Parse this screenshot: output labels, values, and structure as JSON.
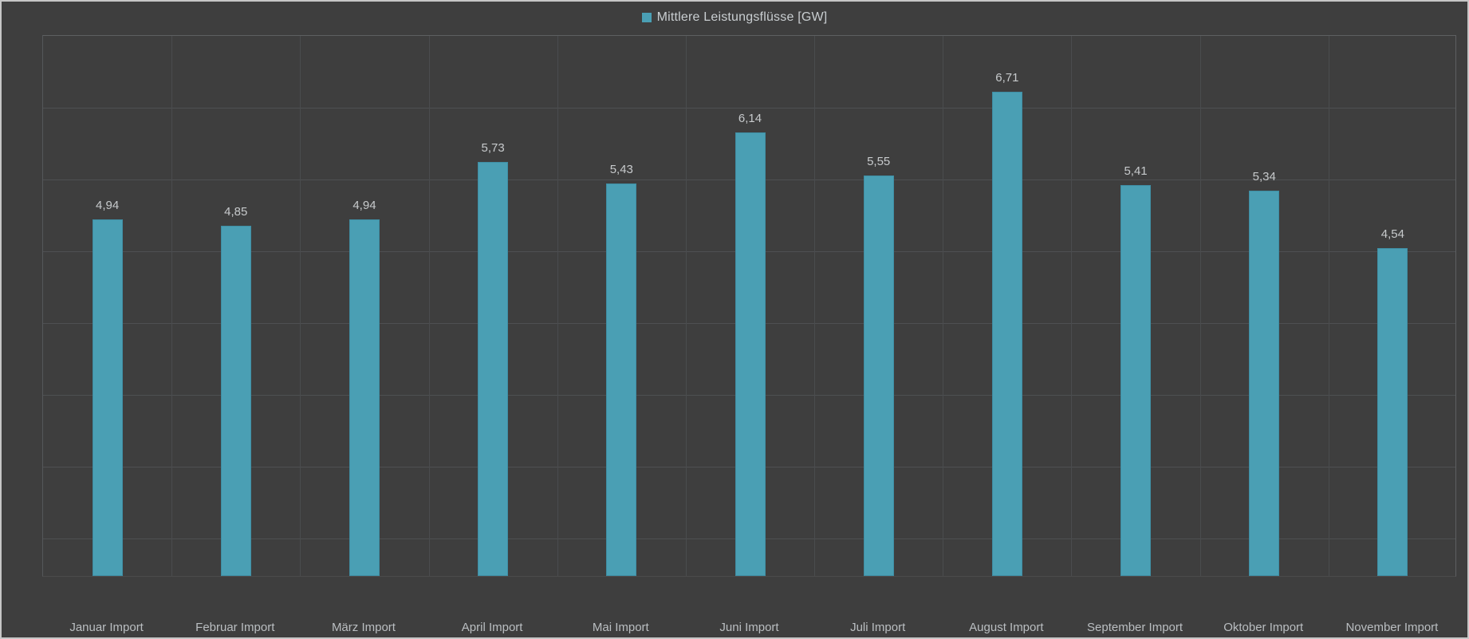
{
  "window": {
    "background_color": "#3e3e3e",
    "border_color": "#c6c6c6"
  },
  "legend": {
    "label": "Mittlere Leistungsflüsse [GW]",
    "swatch_color": "#4a9fb4",
    "position": "top-center"
  },
  "colors": {
    "bar_fill": "#4a9fb4",
    "bar_edge": "#3f8ea4",
    "gridline": "#4e5052",
    "plot_border": "#5d5f61",
    "value_label_text": "#c7cacc",
    "category_label_text": "#babec1",
    "legend_text": "#c9ced1",
    "background": "#3e3e3e"
  },
  "chart_data": {
    "type": "bar",
    "title": "",
    "xlabel": "",
    "ylabel": "",
    "series_name": "Mittlere Leistungsflüsse [GW]",
    "unit": "GW",
    "categories": [
      "Januar Import",
      "Februar Import",
      "März Import",
      "April Import",
      "Mai Import",
      "Juni Import",
      "Juli Import",
      "August Import",
      "September Import",
      "Oktober Import",
      "November Import"
    ],
    "values": [
      4.94,
      4.85,
      4.94,
      5.73,
      5.43,
      6.14,
      5.55,
      6.71,
      5.41,
      5.34,
      4.54
    ],
    "value_labels": [
      "4,94",
      "4,85",
      "4,94",
      "5,73",
      "5,43",
      "6,14",
      "5,55",
      "6,71",
      "5,41",
      "5,34",
      "4,54"
    ],
    "ylim": [
      0,
      7.5
    ],
    "y_gridline_count": 7,
    "grid": "on",
    "legend_position": "top-center"
  }
}
